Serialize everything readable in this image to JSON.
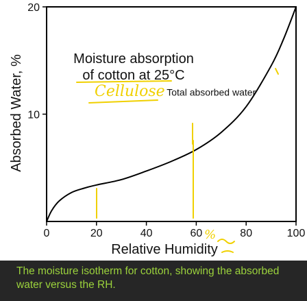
{
  "chart_data": {
    "type": "line",
    "title": "Moisture absorption\nof cotton at 25°C",
    "xlabel": "Relative Humidity",
    "ylabel": "Absorbed Water, %",
    "xlim": [
      0,
      100
    ],
    "ylim": [
      0,
      20
    ],
    "x_ticks": [
      0,
      20,
      40,
      60,
      80,
      100
    ],
    "y_ticks": [
      10,
      20
    ],
    "grid": false,
    "series": [
      {
        "x": [
          0,
          2,
          5,
          10,
          15,
          20,
          30,
          40,
          50,
          60,
          70,
          80,
          90,
          95,
          100
        ],
        "y": [
          0,
          1.0,
          1.9,
          2.7,
          3.1,
          3.4,
          3.9,
          4.7,
          5.6,
          6.7,
          8.3,
          10.7,
          14.5,
          17.0,
          20.0
        ]
      }
    ],
    "annotations": [
      {
        "text": "Total absorbed water",
        "x": 66,
        "y": 7.9
      }
    ],
    "handwritten": [
      "Cellulose",
      "%"
    ],
    "colors": {
      "line": "#000000",
      "ink": "#f0d000",
      "background": "#ffffff"
    }
  },
  "caption": {
    "text": "The moisture isotherm for cotton, showing the absorbed water versus the RH."
  }
}
